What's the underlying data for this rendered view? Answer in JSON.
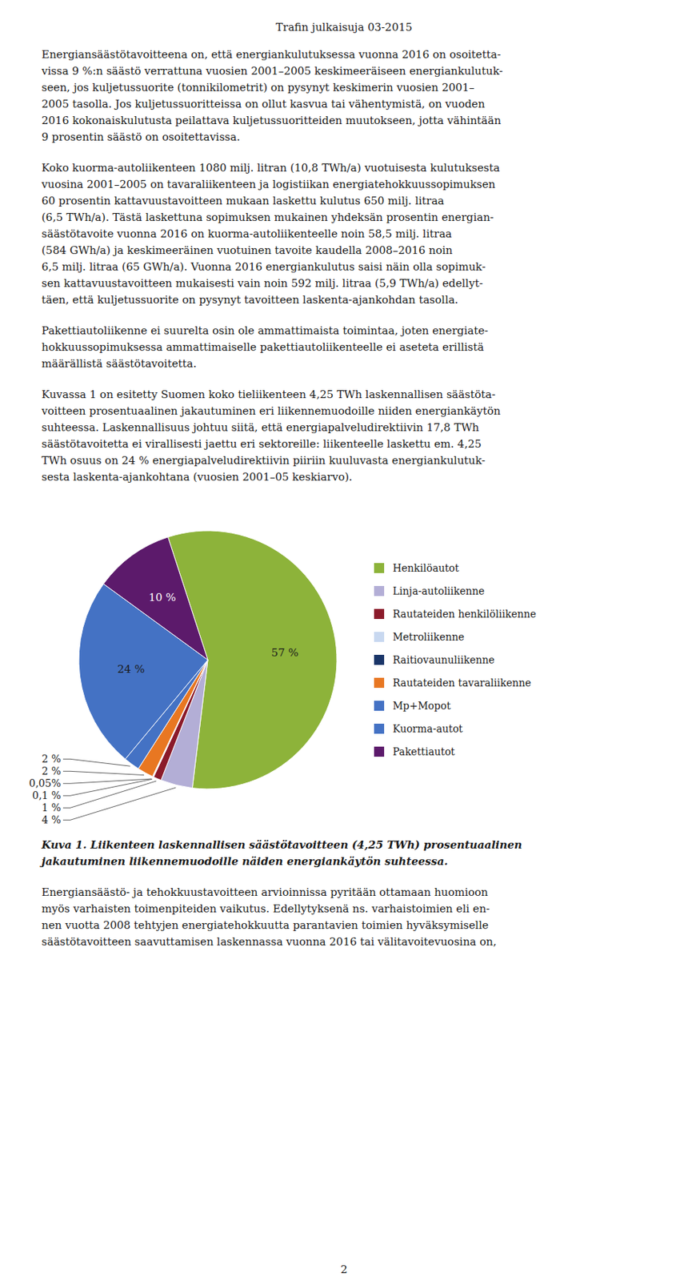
{
  "header": "Trafin julkaisuja 03-2015",
  "paragraphs_before": [
    "Energiansäästötavoitteena on, että energiankulutuksessa vuonna 2016 on osoitetta-\nvissa 9 %:n säästö verrattuna vuosien 2001–2005 keskimeeräiseen energiankulutuk-\nseen, jos kuljetussuorite (tonnikilometrit) on pysynyt keskimerin vuosien 2001–\n2005 tasolla. Jos kuljetussuoritteissa on ollut kasvua tai vähentymistä, on vuoden\n2016 kokonaiskulutusta peilattava kuljetussuoritteiden muutokseen, jotta vähintään\n9 prosentin säästö on osoitettavissa.",
    "Koko kuorma-autoliikenteen 1080 milj. litran (10,8 TWh/a) vuotuisesta kulutuksesta\nvuosina 2001–2005 on tavaraliikenteen ja logistiikan energiatehokkuussopimuksen\n60 prosentin kattavuustavoitteen mukaan laskettu kulutus 650 milj. litraa\n(6,5 TWh/a). Tästä laskettuna sopimuksen mukainen yhdeksän prosentin energian-\nsäästötavoite vuonna 2016 on kuorma-autoliikenteelle noin 58,5 milj. litraa\n(584 GWh/a) ja keskimeeräinen vuotuinen tavoite kaudella 2008–2016 noin\n6,5 milj. litraa (65 GWh/a). Vuonna 2016 energiankulutus saisi näin olla sopimuk-\nsen kattavuustavoitteen mukaisesti vain noin 592 milj. litraa (5,9 TWh/a) edellyt-\ntäen, että kuljetussuorite on pysynyt tavoitteen laskenta-ajankohdan tasolla.",
    "Pakettiautoliikenne ei suurelta osin ole ammattimaista toimintaa, joten energiate-\nhokkuussopimuksessa ammattimaiselle pakettiautoliikenteelle ei aseteta erillistä\nmäärällistä säästötavoitetta.",
    "Kuvassa 1 on esitetty Suomen koko tieliikenteen 4,25 TWh laskennallisen säästöta-\nvoitteen prosentuaalinen jakautuminen eri liikennemuodoille niiden energiankäytön\nsuhteessa. Laskennallisuus johtuu siitä, että energiapalveludirektiivin 17,8 TWh\nsäästötavoitetta ei virallisesti jaettu eri sektoreille: liikenteelle laskettu em. 4,25\nTWh osuus on 24 % energiapalveludirektiivin piiriin kuuluvasta energiankulutuk-\nsesta laskenta-ajankohtana (vuosien 2001–05 keskiarvo)."
  ],
  "chart_data": {
    "type": "pie",
    "title": "Kuva 1. Liikenteen laskennallisen säästötavoitteen (4,25 TWh) prosentuaalinen\njakautuminen liikennemuodoille näiden energiankäytön suhteessa.",
    "categories": [
      "Henkilöautot",
      "Linja-autoliikenne",
      "Rautateiden henkilöliikenne",
      "Metroliikenne",
      "Raitiovaunuliikenne",
      "Rautateiden tavaraliikenne",
      "Mp+Mopot",
      "Kuorma-autot",
      "Pakettiautot"
    ],
    "values": [
      57,
      4,
      1,
      0.1,
      0.05,
      2,
      2,
      24,
      10
    ],
    "value_labels": [
      "57 %",
      "4 %",
      "1 %",
      "0,1 %",
      "0,05%",
      "2 %",
      "2 %",
      "24 %",
      "10 %"
    ],
    "colors": [
      "#8db33a",
      "#b3aed6",
      "#8b1a2a",
      "#c8d8f0",
      "#1a3568",
      "#e87722",
      "#4472c4",
      "#4472c4",
      "#5c1a6b"
    ],
    "data_labels": true,
    "legend": "right"
  },
  "paragraphs_after": [
    "Energiansäästö- ja tehokkuustavoitteen arvioinnissa pyritään ottamaan huomioon\nmyös varhaisten toimenpiteiden vaikutus. Edellytyksenä ns. varhaistoimien eli en-\nnen vuotta 2008 tehtyjen energiatehokkuutta parantavien toimien hyväksymiselle\nsäästötavoitteen saavuttamisen laskennassa vuonna 2016 tai välitavoitevuosina on,"
  ],
  "footer": "2"
}
